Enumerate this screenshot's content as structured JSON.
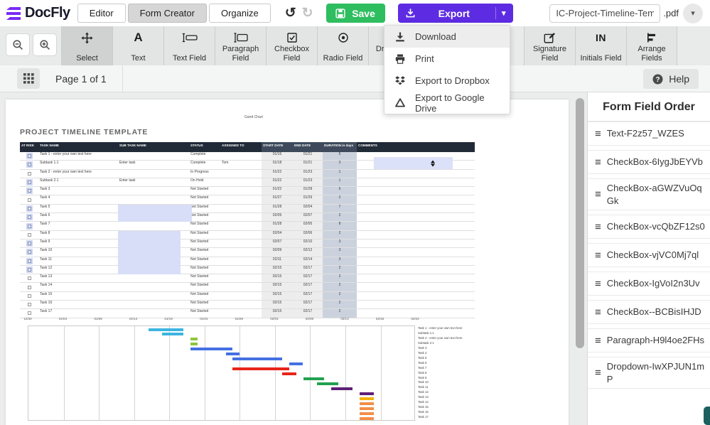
{
  "header": {
    "logo_text": "DocFly",
    "tabs": [
      {
        "label": "Editor"
      },
      {
        "label": "Form Creator",
        "filled": true
      },
      {
        "label": "Organize"
      }
    ],
    "save_label": "Save",
    "export_label": "Export",
    "filename": "IC-Project-Timeline-Temp",
    "ext": ".pdf"
  },
  "export_menu": [
    {
      "label": "Download",
      "icon": "download",
      "highlighted": true
    },
    {
      "label": "Print",
      "icon": "print"
    },
    {
      "label": "Export to Dropbox",
      "icon": "dropbox"
    },
    {
      "label": "Export to Google Drive",
      "icon": "google-drive"
    }
  ],
  "toolbar": {
    "tools": [
      {
        "label": "Select",
        "icon": "move",
        "active": true
      },
      {
        "label": "Text",
        "icon": "text"
      },
      {
        "label": "Text Field",
        "icon": "text-field"
      },
      {
        "label": "Paragraph Field",
        "icon": "paragraph-field"
      },
      {
        "label": "Checkbox Field",
        "icon": "checkbox"
      },
      {
        "label": "Radio Field",
        "icon": "radio"
      },
      {
        "label": "Dropdown Field",
        "icon": "dropdown"
      }
    ],
    "tools_right": [
      {
        "label": "Signature Field",
        "icon": "signature"
      },
      {
        "label": "Initials Field",
        "icon": "initials"
      },
      {
        "label": "Arrange Fields",
        "icon": "arrange"
      }
    ]
  },
  "pagebar": {
    "page_label": "Page 1 of 1",
    "help_label": "Help"
  },
  "sidebar": {
    "title": "Form Field Order",
    "items": [
      "Text-F2z57_WZES",
      "CheckBox-6IygJbEYVb",
      "CheckBox-aGWZVuOqGk",
      "CheckBox-vcQbZF12s0",
      "CheckBox-vjVC0Mj7ql",
      "CheckBox-IgVoI2n3Uv",
      "CheckBox--BCBisIHJD",
      "Paragraph-H9l4oe2FHs",
      "Dropdown-IwXPJUN1mP"
    ]
  },
  "document": {
    "corner_label": "Gantt Chart",
    "title": "PROJECT TIMELINE TEMPLATE",
    "columns": [
      "AT RISK",
      "TASK NAME",
      "SUB TASK NAME",
      "STATUS",
      "ASSIGNED TO",
      "START DATE",
      "END DATE",
      "DURATION in days",
      "COMMENTS"
    ],
    "rows": [
      {
        "name": "Task 1 - enter your own text here",
        "sub": "",
        "status": "Complete",
        "who": "",
        "start": "01/16",
        "end": "01/21",
        "dur": "5",
        "cb": "field",
        "color": "#3cb5e0"
      },
      {
        "name": "Subtask 1.1",
        "sub": "Enter task",
        "status": "Complete",
        "who": "Tom",
        "start": "01/18",
        "end": "01/21",
        "dur": "3",
        "cb": "field",
        "color": "#3cb5e0"
      },
      {
        "name": "Task 2 - enter your own text here",
        "sub": "",
        "status": "In Progress",
        "who": "",
        "start": "01/22",
        "end": "01/23",
        "dur": "1",
        "cb": "plain",
        "color": "#8dc63f"
      },
      {
        "name": "Subtask 2.1",
        "sub": "Enter task",
        "status": "On Hold",
        "who": "",
        "start": "01/22",
        "end": "01/23",
        "dur": "1",
        "cb": "field",
        "color": "#8dc63f"
      },
      {
        "name": "Task 3",
        "sub": "",
        "status": "Not Started",
        "who": "",
        "start": "01/22",
        "end": "01/28",
        "dur": "6",
        "cb": "field",
        "color": "#4470e2"
      },
      {
        "name": "Task 4",
        "sub": "",
        "status": "Not Started",
        "who": "",
        "start": "01/27",
        "end": "01/29",
        "dur": "2",
        "cb": "plain",
        "color": "#4470e2"
      },
      {
        "name": "Task 5",
        "sub": "",
        "status": "Not Started",
        "who": "",
        "start": "01/28",
        "end": "02/04",
        "dur": "7",
        "cb": "field",
        "color": "#4470e2"
      },
      {
        "name": "Task 6",
        "sub": "",
        "status": "Not Started",
        "who": "",
        "start": "02/05",
        "end": "02/07",
        "dur": "2",
        "cb": "field",
        "color": "#4470e2"
      },
      {
        "name": "Task 7",
        "sub": "",
        "status": "Not Started",
        "who": "",
        "start": "01/28",
        "end": "02/05",
        "dur": "8",
        "cb": "field",
        "color": "#e8251a"
      },
      {
        "name": "Task 8",
        "sub": "",
        "status": "Not Started",
        "who": "",
        "start": "02/04",
        "end": "02/06",
        "dur": "2",
        "cb": "plain",
        "color": "#e8251a"
      },
      {
        "name": "Task 9",
        "sub": "",
        "status": "Not Started",
        "who": "",
        "start": "02/07",
        "end": "02/10",
        "dur": "3",
        "cb": "field",
        "color": "#22a14f"
      },
      {
        "name": "Task 10",
        "sub": "",
        "status": "Not Started",
        "who": "",
        "start": "02/09",
        "end": "02/12",
        "dur": "3",
        "cb": "field",
        "color": "#22a14f"
      },
      {
        "name": "Task 11",
        "sub": "",
        "status": "Not Started",
        "who": "",
        "start": "02/11",
        "end": "02/14",
        "dur": "3",
        "cb": "field",
        "color": "#5e2076"
      },
      {
        "name": "Task 12",
        "sub": "",
        "status": "Not Started",
        "who": "",
        "start": "02/15",
        "end": "02/17",
        "dur": "2",
        "cb": "field",
        "color": "#5e2076"
      },
      {
        "name": "Task 13",
        "sub": "",
        "status": "Not Started",
        "who": "",
        "start": "02/15",
        "end": "02/17",
        "dur": "2",
        "cb": "plain",
        "color": "#f2b20a"
      },
      {
        "name": "Task 14",
        "sub": "",
        "status": "Not Started",
        "who": "",
        "start": "02/15",
        "end": "02/17",
        "dur": "2",
        "cb": "plain",
        "color": "#f28e49"
      },
      {
        "name": "Task 15",
        "sub": "",
        "status": "Not Started",
        "who": "",
        "start": "02/15",
        "end": "02/17",
        "dur": "2",
        "cb": "plain",
        "color": "#f28e49"
      },
      {
        "name": "Task 16",
        "sub": "",
        "status": "Not Started",
        "who": "",
        "start": "02/15",
        "end": "02/17",
        "dur": "2",
        "cb": "plain",
        "color": "#f28e49"
      },
      {
        "name": "Task 17",
        "sub": "",
        "status": "Not Started",
        "who": "",
        "start": "02/15",
        "end": "02/17",
        "dur": "2",
        "cb": "plain",
        "color": "#f28e49"
      }
    ],
    "gantt_axis_dates": [
      "12/30",
      "01/04",
      "01/09",
      "01/14",
      "01/19",
      "01/24",
      "01/29",
      "02/03",
      "02/08",
      "02/13",
      "02/18",
      "02/23"
    ],
    "form_fields": {
      "dropdown": {
        "row": 1,
        "span": 2
      },
      "subtask_blocks": [
        {
          "row": 7,
          "span": 2,
          "width": 104
        },
        {
          "row": 10,
          "span": 5,
          "width": 88
        }
      ]
    }
  },
  "colors": {
    "save_green": "#2ebd5f",
    "export_purple": "#5d2ce2",
    "logo_purple": "#7a2bf5",
    "table_header": "#212a37",
    "field_highlight": "#d8def7"
  }
}
